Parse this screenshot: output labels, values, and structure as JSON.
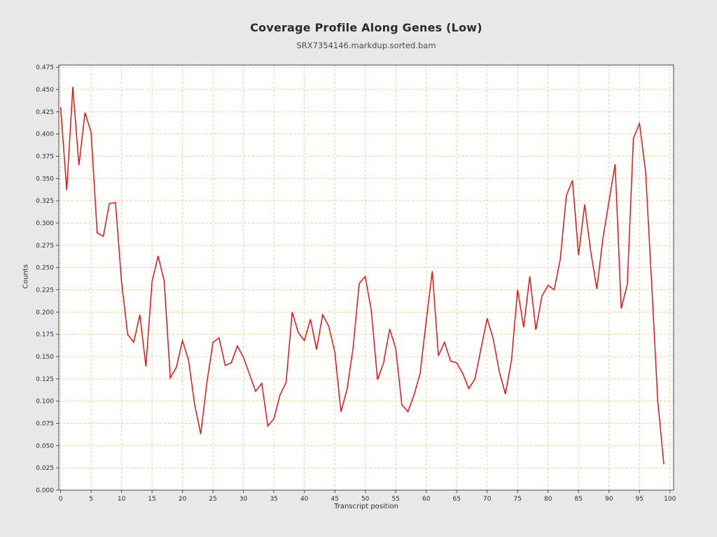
{
  "header": {
    "title": "Coverage Profile Along Genes (Low)",
    "subtitle": "SRX7354146.markdup.sorted.bam"
  },
  "chart_data": {
    "type": "line",
    "title": "Coverage Profile Along Genes (Low)",
    "subtitle": "SRX7354146.markdup.sorted.bam",
    "xlabel": "Transcript position",
    "ylabel": "Counts",
    "legend": null,
    "grid": true,
    "xlim": [
      -0.3,
      100.6
    ],
    "ylim": [
      0.0,
      0.4775
    ],
    "x_ticks": [
      0,
      5,
      10,
      15,
      20,
      25,
      30,
      35,
      40,
      45,
      50,
      55,
      60,
      65,
      70,
      75,
      80,
      85,
      90,
      95,
      100
    ],
    "x_tick_labels": [
      "0",
      "5",
      "10",
      "15",
      "20",
      "25",
      "30",
      "35",
      "40",
      "45",
      "50",
      "55",
      "60",
      "65",
      "70",
      "75",
      "80",
      "85",
      "90",
      "95",
      "100"
    ],
    "y_ticks": [
      0.0,
      0.025,
      0.05,
      0.075,
      0.1,
      0.125,
      0.15,
      0.175,
      0.2,
      0.225,
      0.25,
      0.275,
      0.3,
      0.325,
      0.35,
      0.375,
      0.4,
      0.425,
      0.45,
      0.475
    ],
    "y_tick_labels": [
      "0.000",
      "0.025",
      "0.050",
      "0.075",
      "0.100",
      "0.125",
      "0.150",
      "0.175",
      "0.200",
      "0.225",
      "0.250",
      "0.275",
      "0.300",
      "0.325",
      "0.350",
      "0.375",
      "0.400",
      "0.425",
      "0.450",
      "0.475"
    ],
    "x": [
      0,
      1,
      2,
      3,
      4,
      5,
      6,
      7,
      8,
      9,
      10,
      11,
      12,
      13,
      14,
      15,
      16,
      17,
      18,
      19,
      20,
      21,
      22,
      23,
      24,
      25,
      26,
      27,
      28,
      29,
      30,
      31,
      32,
      33,
      34,
      35,
      36,
      37,
      38,
      39,
      40,
      41,
      42,
      43,
      44,
      45,
      46,
      47,
      48,
      49,
      50,
      51,
      52,
      53,
      54,
      55,
      56,
      57,
      58,
      59,
      60,
      61,
      62,
      63,
      64,
      65,
      66,
      67,
      68,
      69,
      70,
      71,
      72,
      73,
      74,
      75,
      76,
      77,
      78,
      79,
      80,
      81,
      82,
      83,
      84,
      85,
      86,
      87,
      88,
      89,
      90,
      91,
      92,
      93,
      94,
      95,
      96,
      97,
      98,
      99
    ],
    "values": [
      0.43,
      0.337,
      0.453,
      0.365,
      0.424,
      0.402,
      0.289,
      0.285,
      0.322,
      0.323,
      0.234,
      0.175,
      0.166,
      0.197,
      0.139,
      0.234,
      0.263,
      0.235,
      0.126,
      0.138,
      0.168,
      0.146,
      0.096,
      0.063,
      0.121,
      0.166,
      0.171,
      0.14,
      0.143,
      0.162,
      0.149,
      0.13,
      0.111,
      0.12,
      0.072,
      0.08,
      0.107,
      0.121,
      0.2,
      0.177,
      0.168,
      0.192,
      0.158,
      0.197,
      0.184,
      0.155,
      0.088,
      0.113,
      0.16,
      0.232,
      0.24,
      0.201,
      0.124,
      0.143,
      0.181,
      0.159,
      0.096,
      0.088,
      0.107,
      0.131,
      0.19,
      0.246,
      0.151,
      0.166,
      0.145,
      0.143,
      0.131,
      0.114,
      0.125,
      0.159,
      0.193,
      0.17,
      0.133,
      0.108,
      0.146,
      0.225,
      0.183,
      0.24,
      0.18,
      0.218,
      0.23,
      0.225,
      0.259,
      0.331,
      0.348,
      0.264,
      0.321,
      0.268,
      0.226,
      0.283,
      0.325,
      0.366,
      0.204,
      0.231,
      0.395,
      0.412,
      0.358,
      0.232,
      0.1,
      0.029
    ],
    "colors": {
      "line": "#ee1111",
      "grid": "#f5c79e",
      "spine": "#4a4a4a",
      "tick_text": "#2f2f2f",
      "figure_background": "#e8e8e8",
      "plot_background": "#ffffff"
    },
    "legend_position": "none"
  }
}
